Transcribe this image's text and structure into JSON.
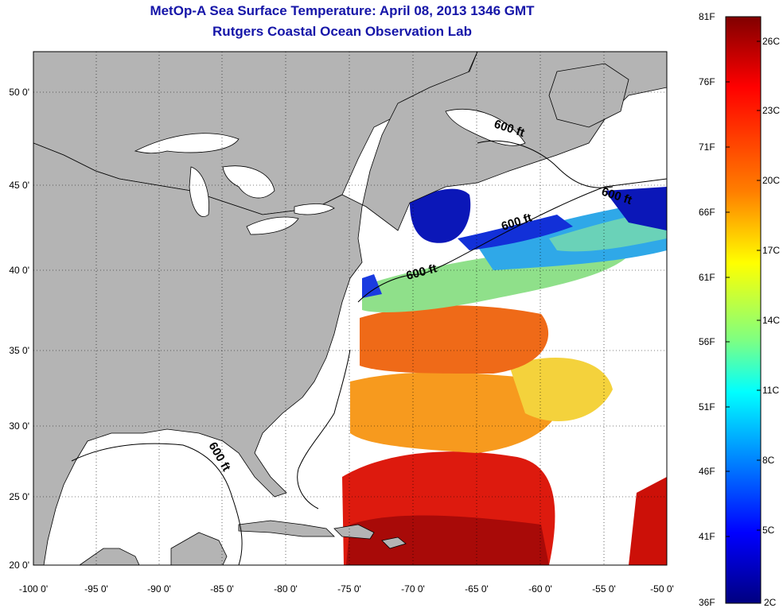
{
  "header": {
    "title": "MetOp-A Sea Surface Temperature:  April 08, 2013 1346 GMT",
    "subtitle": "Rutgers Coastal Ocean Observation Lab"
  },
  "map": {
    "lon_range": [
      -100,
      -50
    ],
    "lat_range": [
      20,
      52.5
    ],
    "lon_ticks": [
      "-100 0'",
      "-95 0'",
      "-90 0'",
      "-85 0'",
      "-80 0'",
      "-75 0'",
      "-70 0'",
      "-65 0'",
      "-60 0'",
      "-55 0'",
      "-50 0'"
    ],
    "lat_ticks": [
      "50 0'",
      "45 0'",
      "40 0'",
      "35 0'",
      "30 0'",
      "25 0'",
      "20 0'"
    ],
    "grid": "dotted",
    "land_color": "#b4b4b4",
    "contour_labels": [
      "600 ft",
      "600 ft",
      "600 ft",
      "600 ft",
      "600 ft"
    ]
  },
  "colorbar": {
    "fahrenheit_labels": [
      "81F",
      "76F",
      "71F",
      "66F",
      "61F",
      "56F",
      "51F",
      "46F",
      "41F",
      "36F"
    ],
    "celsius_labels": [
      "26C",
      "23C",
      "20C",
      "17C",
      "14C",
      "11C",
      "8C",
      "5C",
      "2C"
    ],
    "colors": [
      "#800000",
      "#ff0000",
      "#ff8000",
      "#ffff00",
      "#80ff80",
      "#00ffff",
      "#0080ff",
      "#0000ff",
      "#000080"
    ]
  }
}
